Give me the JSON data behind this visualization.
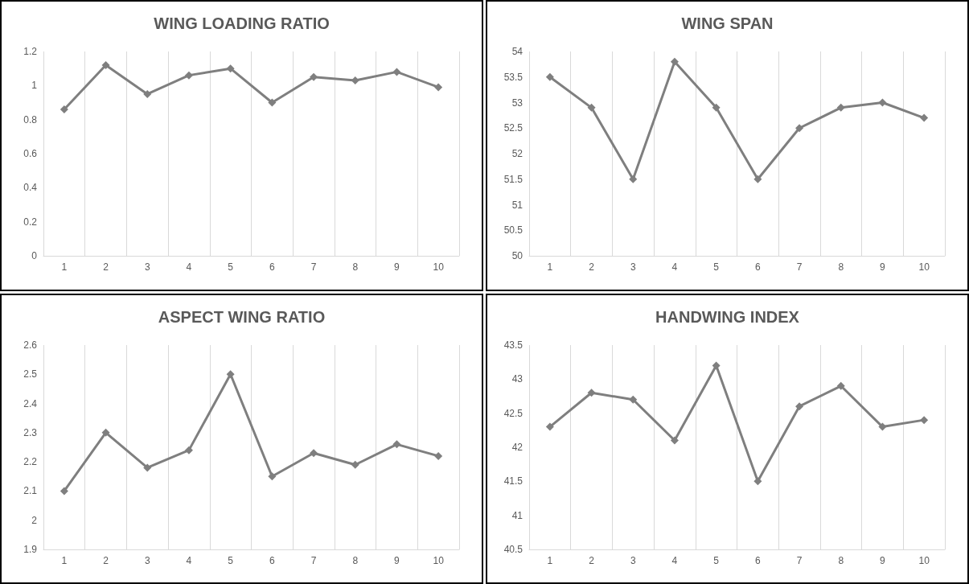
{
  "chart_data": [
    {
      "type": "line",
      "title": "WING LOADING RATIO",
      "categories": [
        "1",
        "2",
        "3",
        "4",
        "5",
        "6",
        "7",
        "8",
        "9",
        "10"
      ],
      "series": [
        {
          "color": "#7f7f7f",
          "values": [
            0.86,
            1.12,
            0.95,
            1.06,
            1.1,
            0.9,
            1.05,
            1.03,
            1.08,
            0.99
          ]
        }
      ],
      "ylim": [
        0,
        1.2
      ],
      "yticks": [
        0,
        0.2,
        0.4,
        0.6,
        0.8,
        1,
        1.2
      ],
      "grid": "x",
      "marker": "diamond",
      "line_style": "solid"
    },
    {
      "type": "line",
      "title": "WING SPAN",
      "categories": [
        "1",
        "2",
        "3",
        "4",
        "5",
        "6",
        "7",
        "8",
        "9",
        "10"
      ],
      "series": [
        {
          "color": "#7f7f7f",
          "values": [
            53.5,
            52.9,
            51.5,
            53.8,
            52.9,
            51.5,
            52.5,
            52.9,
            53.0,
            52.7
          ]
        }
      ],
      "ylim": [
        50,
        54
      ],
      "yticks": [
        50,
        50.5,
        51,
        51.5,
        52,
        52.5,
        53,
        53.5,
        54
      ],
      "grid": "x",
      "marker": "diamond",
      "line_style": "solid"
    },
    {
      "type": "line",
      "title": "ASPECT WING RATIO",
      "categories": [
        "1",
        "2",
        "3",
        "4",
        "5",
        "6",
        "7",
        "8",
        "9",
        "10"
      ],
      "series": [
        {
          "color": "#7f7f7f",
          "values": [
            2.1,
            2.3,
            2.18,
            2.24,
            2.5,
            2.15,
            2.23,
            2.19,
            2.26,
            2.22
          ]
        }
      ],
      "ylim": [
        1.9,
        2.6
      ],
      "yticks": [
        1.9,
        2,
        2.1,
        2.2,
        2.3,
        2.4,
        2.5,
        2.6
      ],
      "grid": "x",
      "marker": "diamond",
      "line_style": "solid"
    },
    {
      "type": "line",
      "title": "HANDWING INDEX",
      "categories": [
        "1",
        "2",
        "3",
        "4",
        "5",
        "6",
        "7",
        "8",
        "9",
        "10"
      ],
      "series": [
        {
          "color": "#7f7f7f",
          "values": [
            42.3,
            42.8,
            42.7,
            42.1,
            43.2,
            41.5,
            42.6,
            42.9,
            42.3,
            42.4
          ]
        }
      ],
      "ylim": [
        40.5,
        43.5
      ],
      "yticks": [
        40.5,
        41,
        41.5,
        42,
        42.5,
        43,
        43.5
      ],
      "grid": "x",
      "marker": "diamond",
      "line_style": "solid"
    }
  ]
}
